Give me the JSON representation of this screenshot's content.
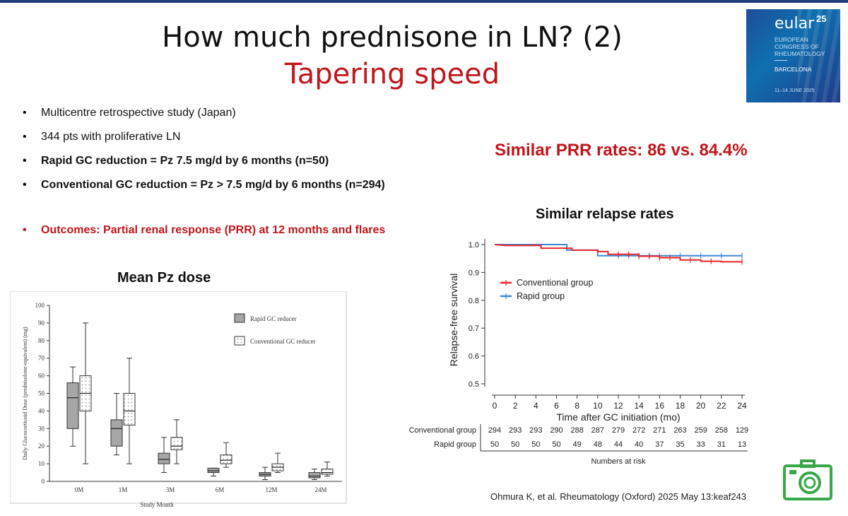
{
  "slide": {
    "title": "How much prednisone in LN? (2)",
    "subtitle": "Tapering speed",
    "bullet_glyph": "•",
    "bullets": [
      {
        "text": "Multicentre retrospective study (Japan)",
        "bold": false
      },
      {
        "text": "344 pts with proliferative LN",
        "bold": false
      },
      {
        "text": "Rapid GC reduction = Pz 7.5 mg/d by 6 months (n=50)",
        "bold": true
      },
      {
        "text": "Conventional GC reduction = Pz > 7.5 mg/d by 6 months (n=294)",
        "bold": true
      }
    ],
    "outcome": "Outcomes: Partial renal response (PRR) at 12 months and flares",
    "prr_headline": "Similar PRR rates: 86 vs. 84.4%",
    "relapse_title": "Similar relapse rates",
    "pz_title": "Mean Pz dose",
    "citation": "Ohmura K, et al. Rheumatology (Oxford) 2025 May 13:keaf243",
    "accent_color": "#c0161c"
  },
  "logo": {
    "brand": "eular",
    "number": "25",
    "org_lines": [
      "EUROPEAN",
      "CONGRESS OF",
      "RHEUMATOLOGY"
    ],
    "city": "BARCELONA",
    "dates": "11–14 JUNE 2025"
  },
  "camera_icon": {
    "name": "camera-icon",
    "color": "#3aa84a"
  },
  "chart_data": [
    {
      "type": "box",
      "title": "",
      "ylabel": "Daily Glucocorticoid Dose (prednisolone-equivalent) (mg)",
      "xlabel": "Study Month",
      "ylim": [
        0,
        100
      ],
      "yticks": [
        0,
        10,
        20,
        30,
        40,
        50,
        60,
        70,
        80,
        90,
        100
      ],
      "categories": [
        "0M",
        "1M",
        "3M",
        "6M",
        "12M",
        "24M"
      ],
      "series": [
        {
          "name": "Rapid GC reducer",
          "color": "#a6a6a6",
          "boxes": [
            {
              "min": 20,
              "q1": 30,
              "median": 47.5,
              "q3": 56,
              "max": 65
            },
            {
              "min": 15,
              "q1": 20,
              "median": 30,
              "q3": 35,
              "max": 50
            },
            {
              "min": 5,
              "q1": 10,
              "median": 12.5,
              "q3": 16,
              "max": 25
            },
            {
              "min": 3,
              "q1": 5,
              "median": 6,
              "q3": 7.5,
              "max": 7.5
            },
            {
              "min": 1,
              "q1": 3,
              "median": 4,
              "q3": 5,
              "max": 8
            },
            {
              "min": 1,
              "q1": 2,
              "median": 3,
              "q3": 5,
              "max": 7
            }
          ]
        },
        {
          "name": "Conventional GC reducer",
          "color": "#ffffff",
          "boxes": [
            {
              "min": 10,
              "q1": 40,
              "median": 50,
              "q3": 60,
              "max": 90
            },
            {
              "min": 10,
              "q1": 32,
              "median": 40,
              "q3": 50,
              "max": 70
            },
            {
              "min": 10,
              "q1": 18,
              "median": 20,
              "q3": 25,
              "max": 35
            },
            {
              "min": 8,
              "q1": 10,
              "median": 12,
              "q3": 15,
              "max": 22
            },
            {
              "min": 5,
              "q1": 6,
              "median": 8,
              "q3": 10,
              "max": 16
            },
            {
              "min": 3,
              "q1": 4,
              "median": 5,
              "q3": 7,
              "max": 11
            }
          ]
        }
      ]
    },
    {
      "type": "line",
      "title": "",
      "xlabel": "Time after GC initiation (mo)",
      "ylabel": "Relapse-free survival",
      "xlim": [
        0,
        24
      ],
      "ylim": [
        0.5,
        1.0
      ],
      "xticks": [
        0,
        2,
        4,
        6,
        8,
        10,
        12,
        14,
        16,
        18,
        20,
        22,
        24
      ],
      "yticks": [
        0.5,
        0.6,
        0.7,
        0.8,
        0.9,
        1.0
      ],
      "legend": "upper-left",
      "series": [
        {
          "name": "Conventional group",
          "color": "#e8262b",
          "points": [
            [
              0,
              1.0
            ],
            [
              1,
              0.997
            ],
            [
              4.5,
              0.997
            ],
            [
              4.5,
              0.987
            ],
            [
              7.5,
              0.987
            ],
            [
              7.5,
              0.98
            ],
            [
              10,
              0.98
            ],
            [
              10,
              0.975
            ],
            [
              11,
              0.975
            ],
            [
              11,
              0.965
            ],
            [
              14,
              0.965
            ],
            [
              14,
              0.958
            ],
            [
              16,
              0.958
            ],
            [
              16,
              0.953
            ],
            [
              18,
              0.953
            ],
            [
              18,
              0.945
            ],
            [
              20,
              0.945
            ],
            [
              20,
              0.94
            ],
            [
              22,
              0.94
            ],
            [
              22,
              0.938
            ],
            [
              24,
              0.938
            ]
          ]
        },
        {
          "name": "Rapid group",
          "color": "#3a8ad4",
          "points": [
            [
              0,
              1.0
            ],
            [
              7,
              1.0
            ],
            [
              7,
              0.98
            ],
            [
              10,
              0.98
            ],
            [
              10,
              0.96
            ],
            [
              24,
              0.96
            ]
          ]
        }
      ],
      "risk_table": {
        "title": "Numbers at risk",
        "rows": [
          {
            "label": "Conventional group",
            "values": [
              294,
              293,
              293,
              290,
              288,
              287,
              279,
              272,
              271,
              263,
              259,
              258,
              129
            ]
          },
          {
            "label": "Rapid group",
            "values": [
              50,
              50,
              50,
              50,
              49,
              48,
              44,
              40,
              37,
              35,
              33,
              31,
              13
            ]
          }
        ]
      }
    }
  ]
}
